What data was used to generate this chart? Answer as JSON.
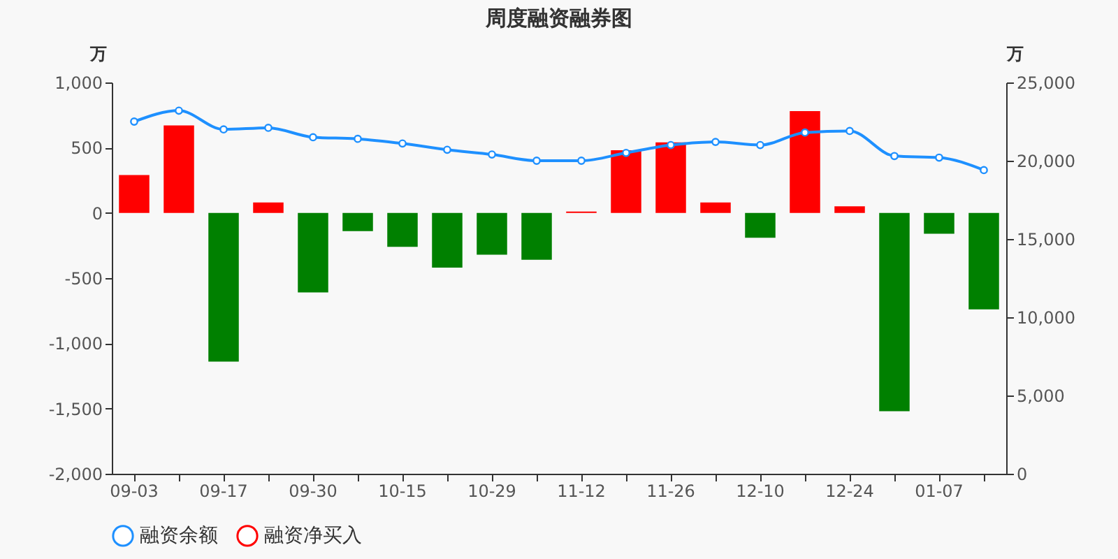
{
  "chart_data": {
    "type": "bar",
    "title": "周度融资融券图",
    "ylabel": "万",
    "y2label": "万",
    "categories": [
      "09-03",
      null,
      "09-17",
      null,
      "09-30",
      null,
      "10-15",
      null,
      "10-29",
      null,
      "11-12",
      null,
      "11-26",
      null,
      "12-10",
      null,
      "12-24",
      null,
      "01-07",
      null
    ],
    "series": [
      {
        "name": "融资余额",
        "type": "line",
        "axis": "y2",
        "color": "#1e90ff",
        "marker": "circle",
        "values": [
          22500,
          23200,
          22000,
          22100,
          21500,
          21400,
          21100,
          20700,
          20400,
          20000,
          20000,
          20500,
          21000,
          21200,
          21000,
          21800,
          21900,
          20300,
          20200,
          19400
        ]
      },
      {
        "name": "融资净买入",
        "color": "#ff0000",
        "colors": [
          "#ff0000",
          "#ff0000",
          "#008000",
          "#ff0000",
          "#008000",
          "#008000",
          "#008000",
          "#008000",
          "#008000",
          "#008000",
          "#ff0000",
          "#ff0000",
          "#ff0000",
          "#ff0000",
          "#008000",
          "#ff0000",
          "#ff0000",
          "#008000",
          "#008000",
          "#008000"
        ],
        "values": [
          290,
          670,
          -1140,
          80,
          -610,
          -140,
          -260,
          -420,
          -320,
          -360,
          10,
          480,
          540,
          80,
          -190,
          780,
          50,
          -1520,
          -160,
          -740
        ]
      }
    ],
    "ylim": [
      -2000,
      1000
    ],
    "yticks": [
      {
        "value": -2000,
        "label": "-2,000"
      },
      {
        "value": -1500,
        "label": "-1,500"
      },
      {
        "value": -1000,
        "label": "-1,000"
      },
      {
        "value": -500,
        "label": "-500"
      },
      0,
      500,
      {
        "value": 1000,
        "label": "1,000"
      }
    ],
    "y2lim": [
      0,
      25000
    ],
    "y2ticks": [
      0,
      {
        "value": 5000,
        "label": "5,000"
      },
      {
        "value": 10000,
        "label": "10,000"
      },
      {
        "value": 15000,
        "label": "15,000"
      },
      {
        "value": 20000,
        "label": "20,000"
      },
      {
        "value": 25000,
        "label": "25,000"
      }
    ],
    "grid": false,
    "legend": "bottom"
  }
}
